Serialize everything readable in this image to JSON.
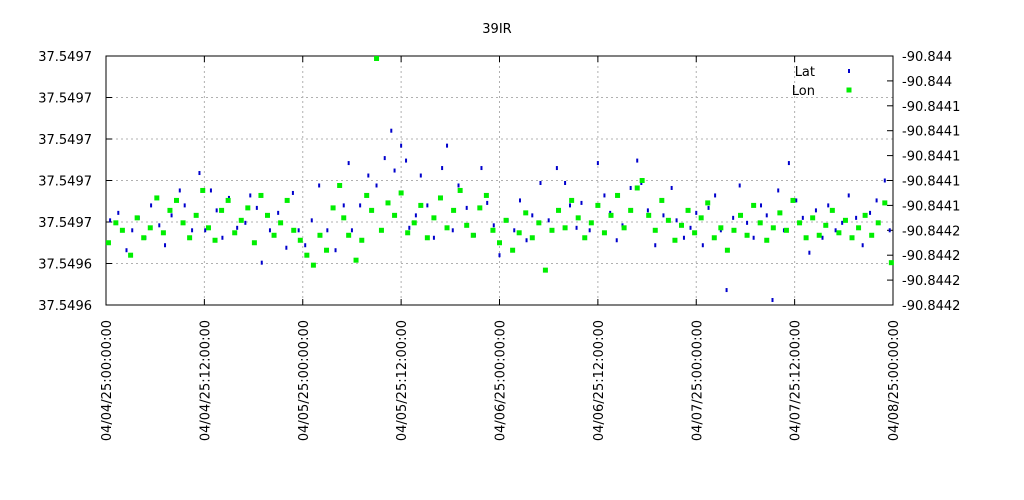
{
  "chart_data": {
    "type": "scatter",
    "title": "39IR",
    "x_tick_labels": [
      "04/04/25:00:00:00",
      "04/04/25:12:00:00",
      "04/05/25:00:00:00",
      "04/05/25:12:00:00",
      "04/06/25:00:00:00",
      "04/06/25:12:00:00",
      "04/07/25:00:00:00",
      "04/07/25:12:00:00",
      "04/08/25:00:00:00"
    ],
    "xlim": [
      0,
      96
    ],
    "xlim_unit": "hours from 04/04/25:00:00:00",
    "y_left_tick_labels": [
      "37.5497",
      "37.5497",
      "37.5497",
      "37.5497",
      "37.5497",
      "37.5496",
      "37.5496"
    ],
    "y_right_tick_labels": [
      "-90.844",
      "-90.844",
      "-90.8441",
      "-90.8441",
      "-90.8441",
      "-90.8441",
      "-90.8441",
      "-90.8442",
      "-90.8442",
      "-90.8442",
      "-90.8442"
    ],
    "legend_placement": "top-right",
    "grid": true,
    "series": [
      {
        "name": "Lat",
        "axis": "left",
        "color": "#0000cc",
        "marker": "tall-dash",
        "points_y_fraction": [
          [
            0.5,
            0.34
          ],
          [
            1.5,
            0.37
          ],
          [
            2.5,
            0.22
          ],
          [
            3.2,
            0.3
          ],
          [
            4.0,
            0.35
          ],
          [
            4.8,
            0.27
          ],
          [
            5.5,
            0.4
          ],
          [
            6.5,
            0.32
          ],
          [
            7.2,
            0.24
          ],
          [
            8.0,
            0.36
          ],
          [
            9.0,
            0.46
          ],
          [
            9.6,
            0.4
          ],
          [
            10.5,
            0.3
          ],
          [
            11.4,
            0.53
          ],
          [
            12.1,
            0.3
          ],
          [
            12.8,
            0.46
          ],
          [
            13.5,
            0.38
          ],
          [
            14.2,
            0.27
          ],
          [
            15.0,
            0.43
          ],
          [
            16.0,
            0.31
          ],
          [
            17.0,
            0.33
          ],
          [
            17.6,
            0.44
          ],
          [
            18.4,
            0.39
          ],
          [
            19.0,
            0.17
          ],
          [
            20.0,
            0.3
          ],
          [
            21.0,
            0.37
          ],
          [
            22.0,
            0.23
          ],
          [
            22.8,
            0.45
          ],
          [
            23.5,
            0.3
          ],
          [
            24.3,
            0.24
          ],
          [
            25.1,
            0.34
          ],
          [
            26.0,
            0.48
          ],
          [
            27.0,
            0.3
          ],
          [
            28.0,
            0.22
          ],
          [
            29.0,
            0.4
          ],
          [
            29.6,
            0.57
          ],
          [
            30.0,
            0.3
          ],
          [
            31.0,
            0.4
          ],
          [
            32.0,
            0.52
          ],
          [
            33.0,
            0.48
          ],
          [
            34.0,
            0.59
          ],
          [
            34.8,
            0.7
          ],
          [
            35.2,
            0.54
          ],
          [
            36.0,
            0.64
          ],
          [
            36.6,
            0.58
          ],
          [
            37.0,
            0.31
          ],
          [
            37.8,
            0.36
          ],
          [
            38.4,
            0.52
          ],
          [
            39.2,
            0.4
          ],
          [
            40.0,
            0.27
          ],
          [
            41.0,
            0.55
          ],
          [
            41.6,
            0.64
          ],
          [
            42.3,
            0.3
          ],
          [
            43.0,
            0.48
          ],
          [
            44.0,
            0.39
          ],
          [
            45.0,
            0.28
          ],
          [
            45.8,
            0.55
          ],
          [
            46.5,
            0.41
          ],
          [
            47.3,
            0.32
          ],
          [
            48.0,
            0.2
          ],
          [
            49.0,
            0.34
          ],
          [
            49.8,
            0.3
          ],
          [
            50.5,
            0.42
          ],
          [
            51.3,
            0.26
          ],
          [
            52.0,
            0.36
          ],
          [
            53.0,
            0.49
          ],
          [
            54.0,
            0.34
          ],
          [
            55.0,
            0.55
          ],
          [
            56.0,
            0.49
          ],
          [
            56.6,
            0.4
          ],
          [
            57.4,
            0.31
          ],
          [
            58.0,
            0.41
          ],
          [
            59.0,
            0.3
          ],
          [
            60.0,
            0.57
          ],
          [
            60.8,
            0.44
          ],
          [
            61.5,
            0.37
          ],
          [
            62.3,
            0.26
          ],
          [
            63.0,
            0.32
          ],
          [
            64.0,
            0.47
          ],
          [
            64.8,
            0.58
          ],
          [
            65.3,
            0.49
          ],
          [
            66.1,
            0.38
          ],
          [
            67.0,
            0.24
          ],
          [
            68.0,
            0.36
          ],
          [
            69.0,
            0.47
          ],
          [
            69.6,
            0.34
          ],
          [
            70.5,
            0.27
          ],
          [
            71.3,
            0.31
          ],
          [
            72.0,
            0.37
          ],
          [
            72.8,
            0.24
          ],
          [
            73.5,
            0.39
          ],
          [
            74.3,
            0.44
          ],
          [
            75.0,
            0.3
          ],
          [
            75.7,
            0.06
          ],
          [
            76.5,
            0.35
          ],
          [
            77.3,
            0.48
          ],
          [
            78.2,
            0.33
          ],
          [
            79.0,
            0.27
          ],
          [
            79.9,
            0.4
          ],
          [
            80.6,
            0.36
          ],
          [
            81.3,
            0.02
          ],
          [
            82.0,
            0.46
          ],
          [
            82.7,
            0.3
          ],
          [
            83.3,
            0.57
          ],
          [
            84.2,
            0.42
          ],
          [
            85.0,
            0.35
          ],
          [
            85.8,
            0.21
          ],
          [
            86.6,
            0.38
          ],
          [
            87.4,
            0.27
          ],
          [
            88.1,
            0.4
          ],
          [
            89.0,
            0.3
          ],
          [
            89.8,
            0.33
          ],
          [
            90.6,
            0.44
          ],
          [
            91.5,
            0.35
          ],
          [
            92.3,
            0.24
          ],
          [
            93.2,
            0.37
          ],
          [
            94.0,
            0.42
          ],
          [
            95.0,
            0.5
          ],
          [
            95.6,
            0.3
          ]
        ]
      },
      {
        "name": "Lon",
        "axis": "right",
        "color": "#00ee00",
        "marker": "square",
        "points_y_fraction": [
          [
            0.3,
            0.25
          ],
          [
            1.2,
            0.33
          ],
          [
            2.0,
            0.3
          ],
          [
            3.0,
            0.2
          ],
          [
            3.8,
            0.35
          ],
          [
            4.6,
            0.27
          ],
          [
            5.4,
            0.31
          ],
          [
            6.2,
            0.43
          ],
          [
            7.0,
            0.29
          ],
          [
            7.8,
            0.38
          ],
          [
            8.6,
            0.42
          ],
          [
            9.4,
            0.33
          ],
          [
            10.2,
            0.27
          ],
          [
            11.0,
            0.36
          ],
          [
            11.8,
            0.46
          ],
          [
            12.5,
            0.31
          ],
          [
            13.3,
            0.26
          ],
          [
            14.1,
            0.38
          ],
          [
            14.9,
            0.42
          ],
          [
            15.7,
            0.29
          ],
          [
            16.5,
            0.34
          ],
          [
            17.3,
            0.39
          ],
          [
            18.1,
            0.25
          ],
          [
            18.9,
            0.44
          ],
          [
            19.7,
            0.36
          ],
          [
            20.5,
            0.28
          ],
          [
            21.3,
            0.33
          ],
          [
            22.1,
            0.42
          ],
          [
            22.9,
            0.3
          ],
          [
            23.7,
            0.26
          ],
          [
            24.5,
            0.2
          ],
          [
            25.3,
            0.16
          ],
          [
            26.1,
            0.28
          ],
          [
            26.9,
            0.22
          ],
          [
            27.7,
            0.39
          ],
          [
            28.5,
            0.48
          ],
          [
            29.0,
            0.35
          ],
          [
            29.6,
            0.28
          ],
          [
            30.5,
            0.18
          ],
          [
            31.2,
            0.26
          ],
          [
            31.8,
            0.44
          ],
          [
            32.4,
            0.38
          ],
          [
            33.0,
            0.99
          ],
          [
            33.6,
            0.3
          ],
          [
            34.4,
            0.41
          ],
          [
            35.2,
            0.36
          ],
          [
            36.0,
            0.45
          ],
          [
            36.8,
            0.29
          ],
          [
            37.6,
            0.33
          ],
          [
            38.4,
            0.4
          ],
          [
            39.2,
            0.27
          ],
          [
            40.0,
            0.35
          ],
          [
            40.8,
            0.43
          ],
          [
            41.6,
            0.31
          ],
          [
            42.4,
            0.38
          ],
          [
            43.2,
            0.46
          ],
          [
            44.0,
            0.32
          ],
          [
            44.8,
            0.28
          ],
          [
            45.6,
            0.39
          ],
          [
            46.4,
            0.44
          ],
          [
            47.2,
            0.3
          ],
          [
            48.0,
            0.25
          ],
          [
            48.8,
            0.34
          ],
          [
            49.6,
            0.22
          ],
          [
            50.4,
            0.29
          ],
          [
            51.2,
            0.37
          ],
          [
            52.0,
            0.27
          ],
          [
            52.8,
            0.33
          ],
          [
            53.6,
            0.14
          ],
          [
            54.4,
            0.3
          ],
          [
            55.2,
            0.38
          ],
          [
            56.0,
            0.31
          ],
          [
            56.8,
            0.42
          ],
          [
            57.6,
            0.35
          ],
          [
            58.4,
            0.27
          ],
          [
            59.2,
            0.33
          ],
          [
            60.0,
            0.4
          ],
          [
            60.8,
            0.29
          ],
          [
            61.6,
            0.36
          ],
          [
            62.4,
            0.44
          ],
          [
            63.2,
            0.31
          ],
          [
            64.0,
            0.38
          ],
          [
            64.8,
            0.47
          ],
          [
            65.4,
            0.5
          ],
          [
            66.2,
            0.36
          ],
          [
            67.0,
            0.3
          ],
          [
            67.8,
            0.42
          ],
          [
            68.6,
            0.34
          ],
          [
            69.4,
            0.26
          ],
          [
            70.2,
            0.32
          ],
          [
            71.0,
            0.38
          ],
          [
            71.8,
            0.29
          ],
          [
            72.6,
            0.35
          ],
          [
            73.4,
            0.41
          ],
          [
            74.2,
            0.27
          ],
          [
            75.0,
            0.31
          ],
          [
            75.8,
            0.22
          ],
          [
            76.6,
            0.3
          ],
          [
            77.4,
            0.36
          ],
          [
            78.2,
            0.28
          ],
          [
            79.0,
            0.4
          ],
          [
            79.8,
            0.33
          ],
          [
            80.6,
            0.26
          ],
          [
            81.4,
            0.31
          ],
          [
            82.2,
            0.37
          ],
          [
            83.0,
            0.3
          ],
          [
            83.8,
            0.42
          ],
          [
            84.6,
            0.33
          ],
          [
            85.4,
            0.27
          ],
          [
            86.2,
            0.35
          ],
          [
            87.0,
            0.28
          ],
          [
            87.8,
            0.32
          ],
          [
            88.6,
            0.38
          ],
          [
            89.4,
            0.29
          ],
          [
            90.2,
            0.34
          ],
          [
            91.0,
            0.27
          ],
          [
            91.8,
            0.31
          ],
          [
            92.6,
            0.36
          ],
          [
            93.4,
            0.28
          ],
          [
            94.2,
            0.33
          ],
          [
            95.0,
            0.41
          ],
          [
            95.8,
            0.17
          ]
        ]
      }
    ]
  }
}
